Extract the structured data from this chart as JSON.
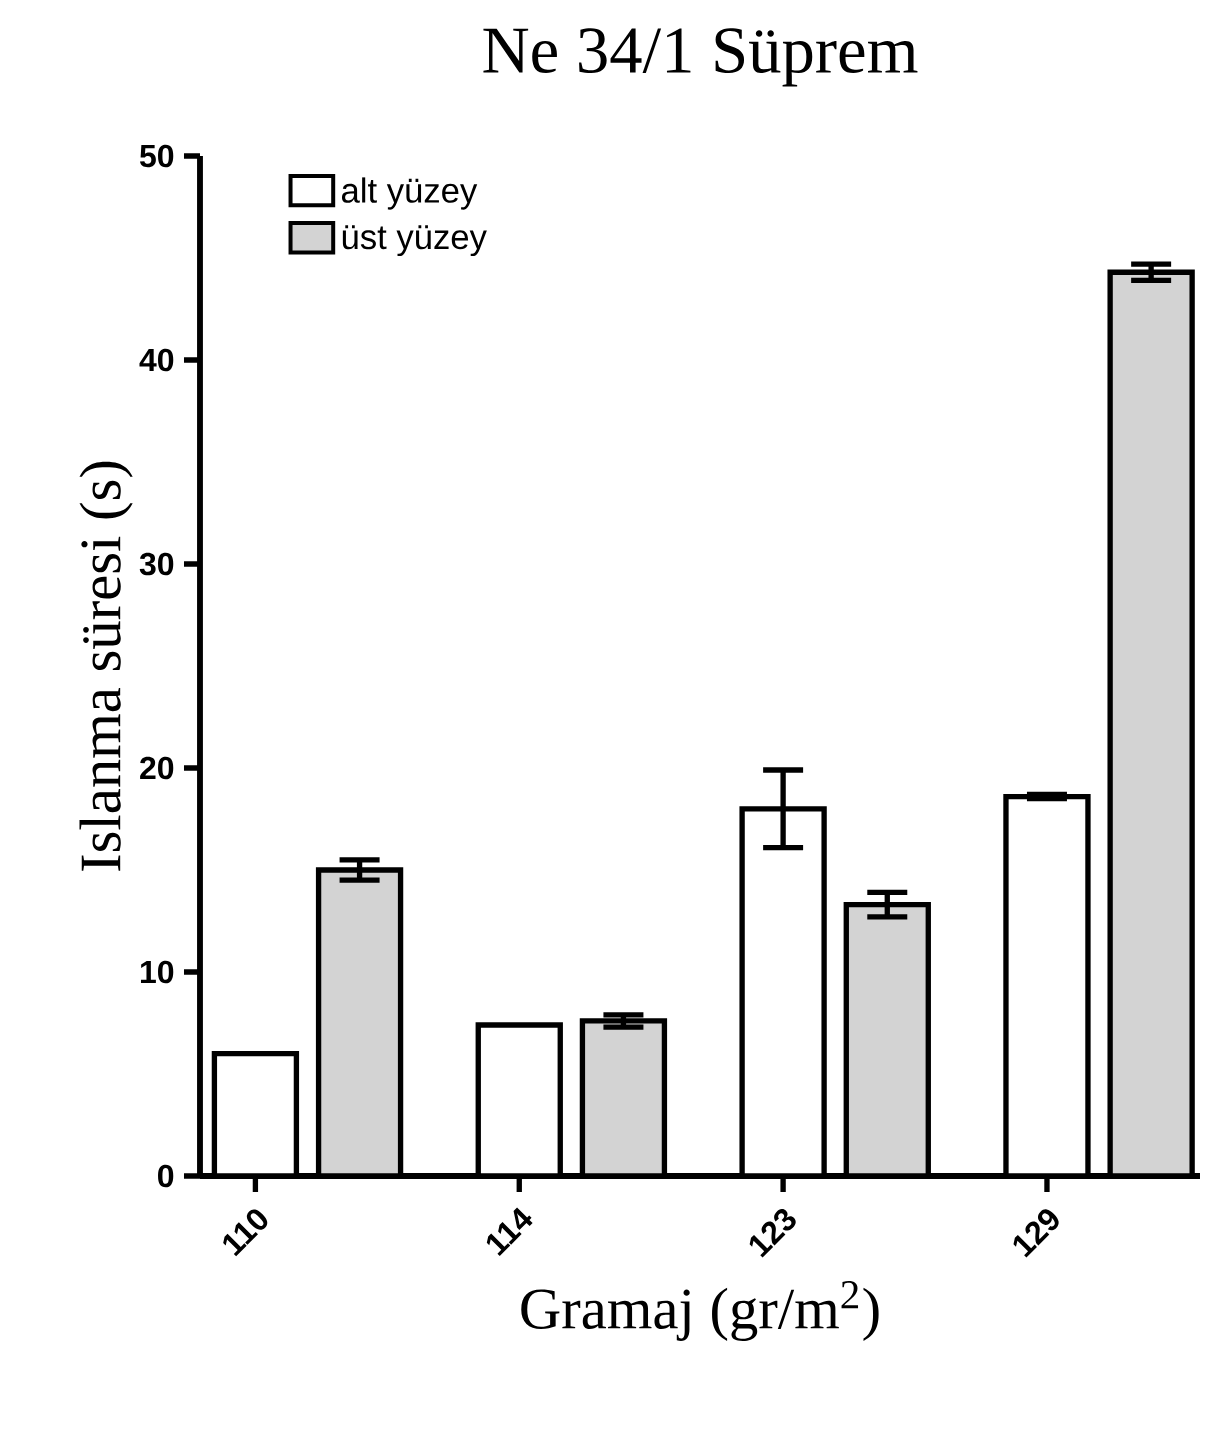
{
  "chart_data": {
    "type": "bar",
    "title": "Ne 34/1 Süprem",
    "xlabel": "Gramaj (gr/m$^{2}$)",
    "ylabel": "Islanma süresi (s)",
    "categories": [
      "110",
      "114",
      "123",
      "129"
    ],
    "series": [
      {
        "name": "alt yüzey",
        "color": "#ffffff",
        "values": [
          6.0,
          7.4,
          18.0,
          18.6
        ],
        "errors": [
          null,
          null,
          1.9,
          0.1
        ]
      },
      {
        "name": "üst yüzey",
        "color": "#d3d3d3",
        "values": [
          15.0,
          7.6,
          13.3,
          44.3
        ],
        "errors": [
          0.5,
          0.3,
          0.6,
          0.4
        ]
      }
    ],
    "ylim": [
      0,
      50
    ],
    "yticks": [
      0,
      10,
      20,
      30,
      40,
      50
    ],
    "legend": "top left"
  }
}
